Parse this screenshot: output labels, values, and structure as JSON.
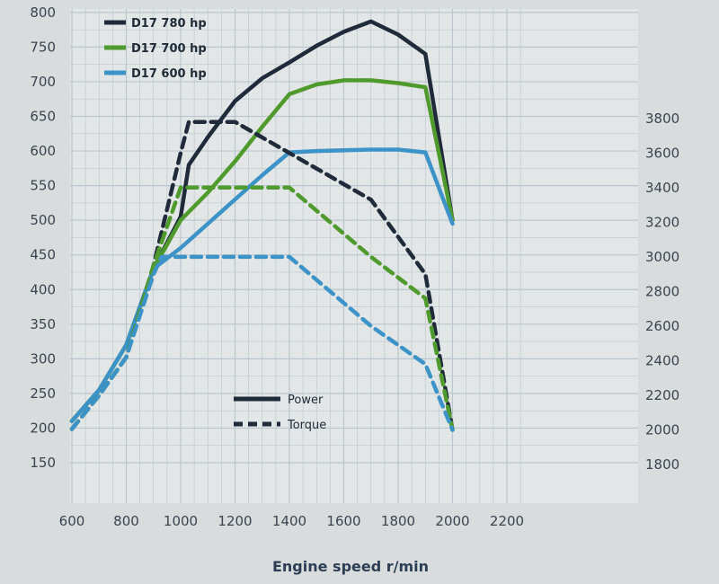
{
  "chart_data": {
    "type": "line",
    "title": "",
    "xlabel": "Engine speed r/min",
    "xlim": [
      600,
      2200
    ],
    "x_ticks": [
      "600",
      "800",
      "1000",
      "1200",
      "1400",
      "1600",
      "1800",
      "2000",
      "2200"
    ],
    "y_left_lim": [
      150,
      800
    ],
    "y_left_ticks": [
      "150",
      "200",
      "250",
      "300",
      "350",
      "400",
      "450",
      "500",
      "550",
      "600",
      "650",
      "700",
      "750",
      "800"
    ],
    "y_right_lim": [
      1800,
      3800
    ],
    "y_right_ticks": [
      "1800",
      "2000",
      "2200",
      "2400",
      "2600",
      "2800",
      "3000",
      "3200",
      "3400",
      "3600",
      "3800"
    ],
    "grid": true,
    "legend": {
      "placement": "top-left",
      "entries": [
        {
          "label": "D17 780 hp",
          "color": "#1f2a3a"
        },
        {
          "label": "D17 700 hp",
          "color": "#4f9a2c"
        },
        {
          "label": "D17 600 hp",
          "color": "#3c93c8"
        }
      ]
    },
    "style_legend": {
      "power_label": "Power",
      "torque_label": "Torque"
    },
    "series": [
      {
        "name": "D17 780 hp",
        "kind": "Power",
        "axis": "left",
        "color": "#1f2a3a",
        "points": [
          [
            600,
            210
          ],
          [
            700,
            255
          ],
          [
            800,
            320
          ],
          [
            900,
            430
          ],
          [
            1000,
            505
          ],
          [
            1030,
            580
          ],
          [
            1100,
            620
          ],
          [
            1200,
            672
          ],
          [
            1300,
            705
          ],
          [
            1400,
            728
          ],
          [
            1500,
            752
          ],
          [
            1600,
            772
          ],
          [
            1700,
            787
          ],
          [
            1800,
            768
          ],
          [
            1900,
            740
          ],
          [
            2000,
            500
          ]
        ]
      },
      {
        "name": "D17 700 hp",
        "kind": "Power",
        "axis": "left",
        "color": "#4f9a2c",
        "points": [
          [
            600,
            210
          ],
          [
            700,
            255
          ],
          [
            800,
            320
          ],
          [
            900,
            430
          ],
          [
            1000,
            500
          ],
          [
            1100,
            540
          ],
          [
            1200,
            585
          ],
          [
            1300,
            635
          ],
          [
            1400,
            682
          ],
          [
            1500,
            696
          ],
          [
            1600,
            702
          ],
          [
            1700,
            702
          ],
          [
            1800,
            698
          ],
          [
            1900,
            692
          ],
          [
            2000,
            500
          ]
        ]
      },
      {
        "name": "D17 600 hp",
        "kind": "Power",
        "axis": "left",
        "color": "#3c93c8",
        "points": [
          [
            600,
            210
          ],
          [
            700,
            255
          ],
          [
            800,
            320
          ],
          [
            900,
            430
          ],
          [
            1000,
            460
          ],
          [
            1100,
            495
          ],
          [
            1200,
            530
          ],
          [
            1300,
            565
          ],
          [
            1400,
            598
          ],
          [
            1500,
            600
          ],
          [
            1600,
            601
          ],
          [
            1700,
            602
          ],
          [
            1800,
            602
          ],
          [
            1900,
            598
          ],
          [
            2000,
            495
          ]
        ]
      },
      {
        "name": "D17 780 hp",
        "kind": "Torque",
        "axis": "right",
        "color": "#1f2a3a",
        "points": [
          [
            600,
            2005
          ],
          [
            700,
            2200
          ],
          [
            800,
            2420
          ],
          [
            900,
            2950
          ],
          [
            1000,
            3600
          ],
          [
            1030,
            3780
          ],
          [
            1100,
            3780
          ],
          [
            1200,
            3780
          ],
          [
            1400,
            3600
          ],
          [
            1600,
            3420
          ],
          [
            1700,
            3330
          ],
          [
            1900,
            2900
          ],
          [
            2000,
            2000
          ]
        ]
      },
      {
        "name": "D17 700 hp",
        "kind": "Torque",
        "axis": "right",
        "color": "#4f9a2c",
        "points": [
          [
            600,
            2005
          ],
          [
            700,
            2200
          ],
          [
            800,
            2420
          ],
          [
            900,
            2950
          ],
          [
            1000,
            3400
          ],
          [
            1400,
            3400
          ],
          [
            1700,
            3000
          ],
          [
            1900,
            2760
          ],
          [
            2000,
            2000
          ]
        ]
      },
      {
        "name": "D17 600 hp",
        "kind": "Torque",
        "axis": "right",
        "color": "#3c93c8",
        "points": [
          [
            600,
            2005
          ],
          [
            700,
            2200
          ],
          [
            800,
            2420
          ],
          [
            900,
            2900
          ],
          [
            930,
            3000
          ],
          [
            1400,
            3000
          ],
          [
            1700,
            2600
          ],
          [
            1900,
            2380
          ],
          [
            2000,
            2000
          ]
        ]
      }
    ]
  }
}
